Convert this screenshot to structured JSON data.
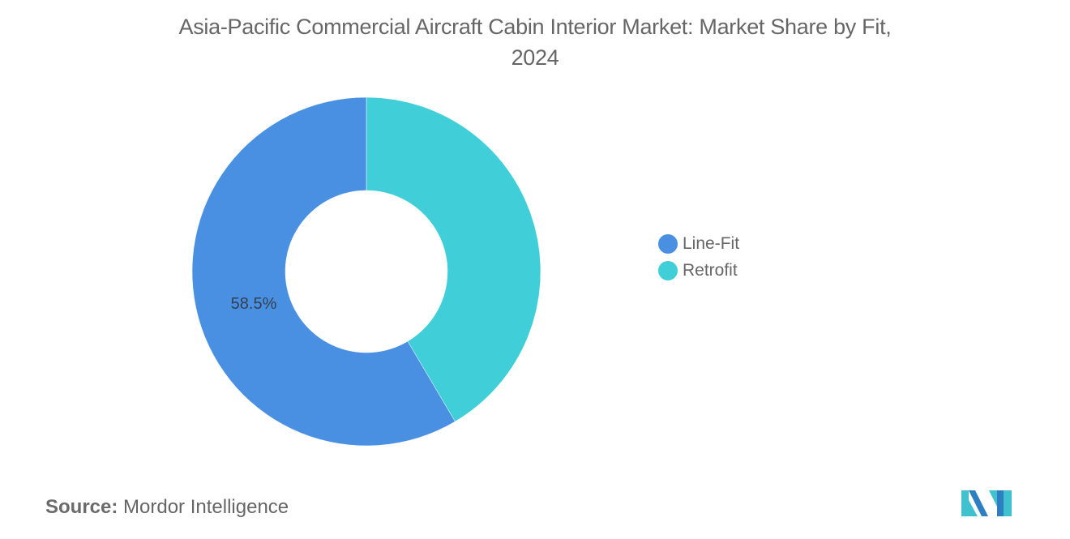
{
  "title": "Asia-Pacific Commercial Aircraft Cabin Interior Market: Market Share by Fit, 2024",
  "title_line1": "Asia-Pacific Commercial Aircraft Cabin Interior Market: Market Share by Fit,",
  "title_line2": "2024",
  "legend": {
    "items": [
      {
        "label": "Line-Fit",
        "color": "#4a90e2"
      },
      {
        "label": "Retrofit",
        "color": "#40cfd9"
      }
    ]
  },
  "slice_label": "58.5%",
  "source": {
    "prefix": "Source:",
    "name": "Mordor Intelligence"
  },
  "logo": "mordor-intelligence-logo",
  "chart_data": {
    "type": "pie",
    "variant": "donut",
    "title": "Asia-Pacific Commercial Aircraft Cabin Interior Market: Market Share by Fit, 2024",
    "categories": [
      "Line-Fit",
      "Retrofit"
    ],
    "values": [
      58.5,
      41.5
    ],
    "colors": [
      "#4a90e2",
      "#40cfd9"
    ],
    "data_labels": [
      "58.5%",
      ""
    ],
    "legend_position": "right",
    "unit": "%"
  }
}
